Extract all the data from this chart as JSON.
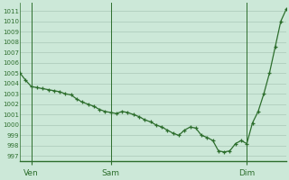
{
  "ylabel_values": [
    997,
    998,
    999,
    1000,
    1001,
    1002,
    1003,
    1004,
    1005,
    1006,
    1007,
    1008,
    1009,
    1010,
    1011
  ],
  "ylim": [
    996.5,
    1011.8
  ],
  "xlim": [
    0,
    47
  ],
  "xtick_positions": [
    2,
    16,
    40
  ],
  "xtick_labels": [
    "Ven",
    "Sam",
    "Dim"
  ],
  "line_color": "#2d6e2d",
  "marker": "+",
  "bg_color": "#cce8d8",
  "plot_bg_color": "#cce8d8",
  "grid_color": "#aac8b8",
  "vline_color": "#2d6e2d",
  "vline_positions": [
    2,
    16,
    40
  ],
  "data_y": [
    1005.0,
    1004.3,
    1003.7,
    1003.6,
    1003.5,
    1003.4,
    1003.3,
    1003.2,
    1003.0,
    1002.9,
    1002.5,
    1002.2,
    1002.0,
    1001.8,
    1001.5,
    1001.3,
    1001.2,
    1001.1,
    1001.3,
    1001.2,
    1001.0,
    1000.8,
    1000.5,
    1000.3,
    1000.0,
    999.8,
    999.5,
    999.2,
    999.0,
    999.5,
    999.8,
    999.7,
    999.0,
    998.8,
    998.5,
    997.5,
    997.4,
    997.5,
    998.2,
    998.5,
    998.2,
    1000.2,
    1001.3,
    1003.0,
    1005.0,
    1007.5,
    1010.0,
    1011.2
  ]
}
